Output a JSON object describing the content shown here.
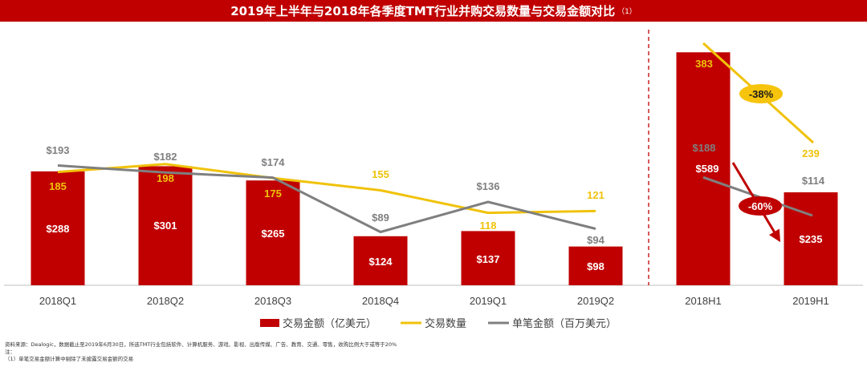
{
  "header": {
    "title": "2019年上半年与2018年各季度TMT行业并购交易数量与交易金额对比",
    "title_note": "（1）"
  },
  "colors": {
    "bar": "#c00000",
    "count_line": "#f0c20a",
    "avg_line": "#7f7f7f",
    "count_label": "#f0c20a",
    "avg_label": "#7f7f7f",
    "badge_neg38": "#f6c40c",
    "badge_neg60": "#c00000"
  },
  "chart_data": {
    "type": "bar",
    "categories": [
      "2018Q1",
      "2018Q2",
      "2018Q3",
      "2018Q4",
      "2019Q1",
      "2019Q2",
      "2018H1",
      "2019H1"
    ],
    "groups": [
      {
        "categories": [
          "2018Q1",
          "2018Q2",
          "2018Q3",
          "2018Q4",
          "2019Q1",
          "2019Q2"
        ]
      },
      {
        "categories": [
          "2018H1",
          "2019H1"
        ]
      }
    ],
    "series": [
      {
        "name": "交易金额（亿美元）",
        "kind": "bar",
        "values": [
          288,
          301,
          265,
          124,
          137,
          98,
          589,
          235
        ],
        "labels": [
          "$288",
          "$301",
          "$265",
          "$124",
          "$137",
          "$98",
          "$589",
          "$235"
        ]
      },
      {
        "name": "交易数量",
        "kind": "line",
        "values": [
          185,
          198,
          175,
          155,
          118,
          121,
          383,
          239
        ],
        "labels": [
          "185",
          "198",
          "175",
          "155",
          "118",
          "121",
          "383",
          "239"
        ]
      },
      {
        "name": "单笔金额（百万美元）",
        "kind": "line",
        "values": [
          193,
          182,
          174,
          89,
          136,
          94,
          188,
          114
        ],
        "labels": [
          "$193",
          "$182",
          "$174",
          "$89",
          "$136",
          "$94",
          "$188",
          "$114"
        ]
      }
    ],
    "annotations": [
      {
        "text": "-38%",
        "series": "交易数量"
      },
      {
        "text": "-60%",
        "series": "交易金额（亿美元）"
      }
    ],
    "legend_position": "bottom",
    "grid": false
  },
  "footer": {
    "source": "资料来源：Dealogic，数据截止至2019年6月30日，所选TMT行业包括软件、计算机服务、游戏、影视、出版传媒、广告、教育、交通、零售，收购比例大于或等于20%",
    "note_label": "注：",
    "note_1": "（1）单笔交易金额计算中剔除了未披露交易金额的交易"
  }
}
